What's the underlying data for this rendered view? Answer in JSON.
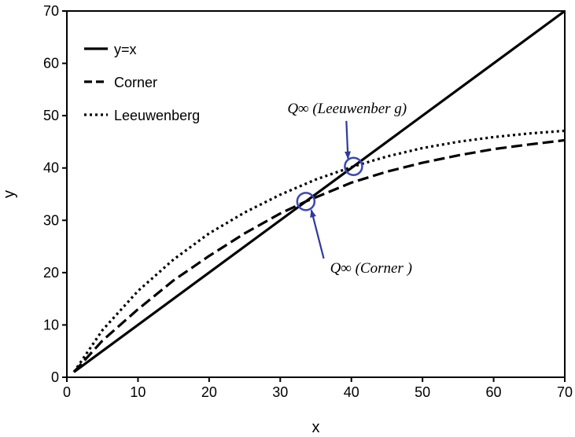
{
  "chart_data": {
    "type": "line",
    "title": "",
    "xlabel": "x",
    "ylabel": "y",
    "xlim": [
      0,
      70
    ],
    "ylim": [
      0,
      70
    ],
    "xticks": [
      0,
      10,
      20,
      30,
      40,
      50,
      60,
      70
    ],
    "yticks": [
      0,
      10,
      20,
      30,
      40,
      50,
      60,
      70
    ],
    "grid": false,
    "legend_position": "top-left",
    "series": [
      {
        "name": "y=x",
        "style": "solid",
        "x": [
          1,
          70
        ],
        "y": [
          1,
          70
        ]
      },
      {
        "name": "Corner",
        "style": "dashed",
        "x": [
          1,
          5,
          10,
          15,
          20,
          25,
          30,
          33.6,
          40,
          45,
          50,
          55,
          60,
          65,
          70
        ],
        "y": [
          1,
          7,
          13,
          18.5,
          23.2,
          27.5,
          31.3,
          33.6,
          37.2,
          39.3,
          41.0,
          42.4,
          43.6,
          44.5,
          45.3
        ]
      },
      {
        "name": "Leeuwenberg",
        "style": "dotted",
        "x": [
          1,
          5,
          10,
          15,
          20,
          25,
          30,
          35,
          40.3,
          45,
          50,
          55,
          60,
          65,
          70
        ],
        "y": [
          1,
          9,
          16.5,
          22.5,
          27.5,
          31.5,
          34.9,
          37.8,
          40.3,
          42.2,
          43.8,
          45.0,
          45.9,
          46.6,
          47.1
        ]
      }
    ],
    "annotations": [
      {
        "label": "Q∞ (Leeuwenber g)",
        "point_x": 40.3,
        "point_y": 40.3,
        "text_x": 31,
        "text_y": 50.5
      },
      {
        "label": "Q∞ (Corner )",
        "point_x": 33.6,
        "point_y": 33.6,
        "text_x": 37,
        "text_y": 20
      }
    ]
  }
}
